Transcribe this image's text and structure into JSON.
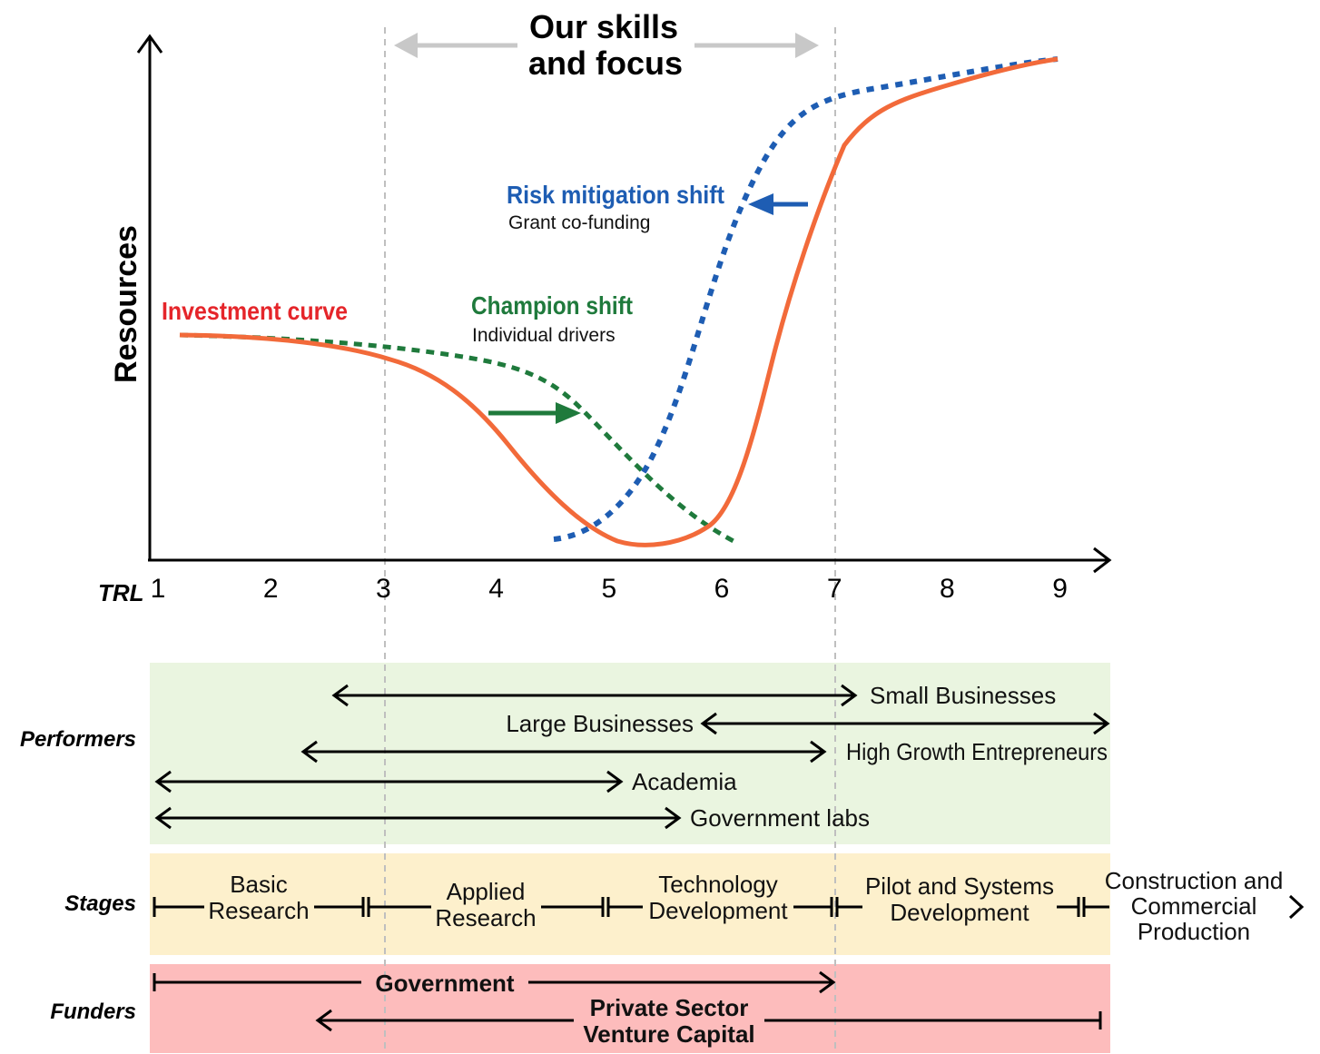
{
  "header": {
    "title_line1": "Our skills",
    "title_line2": "and focus"
  },
  "axes": {
    "ylabel": "Resources",
    "xlabel": "TRL",
    "ticks": [
      "1",
      "2",
      "3",
      "4",
      "5",
      "6",
      "7",
      "8",
      "9"
    ]
  },
  "curves": {
    "investment": {
      "label": "Investment curve",
      "color": "#f26a3a",
      "label_color": "#e5252a"
    },
    "champion": {
      "label": "Champion shift",
      "sub": "Individual drivers",
      "color": "#1f7a3c"
    },
    "risk": {
      "label": "Risk mitigation shift",
      "sub": "Grant co-funding",
      "color": "#1e5db3"
    }
  },
  "performers": {
    "label": "Performers",
    "color": "#eaf5e0",
    "items": {
      "small": "Small Businesses",
      "large": "Large Businesses",
      "high_growth": "High Growth Entrepreneurs",
      "academia": "Academia",
      "gov_labs": "Government labs"
    }
  },
  "stages": {
    "label": "Stages",
    "color": "#fdf0cc",
    "basic_1": "Basic",
    "basic_2": "Research",
    "applied_1": "Applied",
    "applied_2": "Research",
    "tech_1": "Technology",
    "tech_2": "Development",
    "pilot_1": "Pilot and Systems",
    "pilot_2": "Development",
    "construction_1": "Construction and",
    "construction_2": "Commercial",
    "construction_3": "Production"
  },
  "funders": {
    "label": "Funders",
    "color": "#fdbcbc",
    "government": "Government",
    "private_1": "Private Sector",
    "private_2": "Venture Capital"
  }
}
